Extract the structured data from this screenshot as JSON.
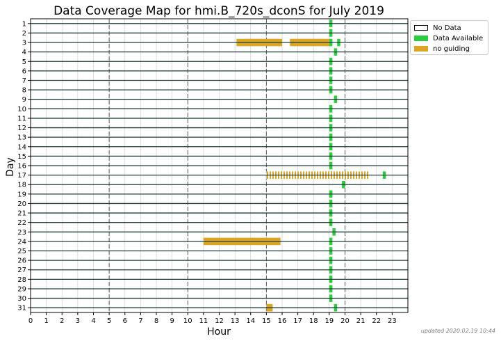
{
  "chart_data": {
    "type": "coverage-map",
    "title": "Data Coverage Map for hmi.B_720s_dconS for July 2019",
    "xlabel": "Hour",
    "ylabel": "Day",
    "xlim": [
      0,
      24
    ],
    "x_ticks": [
      0,
      1,
      2,
      3,
      4,
      5,
      6,
      7,
      8,
      9,
      10,
      11,
      12,
      13,
      14,
      15,
      16,
      17,
      18,
      19,
      20,
      21,
      22,
      23
    ],
    "days": [
      1,
      2,
      3,
      4,
      5,
      6,
      7,
      8,
      9,
      10,
      11,
      12,
      13,
      14,
      15,
      16,
      17,
      18,
      19,
      20,
      21,
      22,
      23,
      24,
      25,
      26,
      27,
      28,
      29,
      30,
      31
    ],
    "dashed_vlines": [
      5,
      10,
      15,
      20
    ],
    "legend": {
      "placement": "upper right, outside plot",
      "entries": [
        {
          "label": "No Data",
          "key": "none"
        },
        {
          "label": "Data Available",
          "key": "available"
        },
        {
          "label": "no guiding",
          "key": "noguide"
        }
      ]
    },
    "colors": {
      "available": "#2ecc40",
      "noguide": "#daa520",
      "none": "#ffffff",
      "row_line": "#1f3d3d",
      "grid": "#c8c8c8",
      "dashed": "#555555"
    },
    "series": [
      {
        "key": "available",
        "segments": [
          [
            1,
            19.0,
            19.2
          ],
          [
            2,
            19.0,
            19.2
          ],
          [
            3,
            19.0,
            19.2
          ],
          [
            3,
            19.5,
            19.7
          ],
          [
            4,
            19.3,
            19.5
          ],
          [
            5,
            19.0,
            19.2
          ],
          [
            6,
            19.0,
            19.2
          ],
          [
            7,
            19.0,
            19.2
          ],
          [
            8,
            19.0,
            19.2
          ],
          [
            9,
            19.3,
            19.5
          ],
          [
            10,
            19.0,
            19.2
          ],
          [
            11,
            19.0,
            19.2
          ],
          [
            12,
            19.0,
            19.2
          ],
          [
            13,
            19.0,
            19.2
          ],
          [
            14,
            19.0,
            19.2
          ],
          [
            15,
            19.0,
            19.2
          ],
          [
            16,
            19.0,
            19.2
          ],
          [
            17,
            19.0,
            19.2
          ],
          [
            17,
            22.4,
            22.6
          ],
          [
            18,
            19.8,
            20.0
          ],
          [
            19,
            19.0,
            19.2
          ],
          [
            20,
            19.0,
            19.2
          ],
          [
            21,
            19.0,
            19.2
          ],
          [
            22,
            19.0,
            19.2
          ],
          [
            23,
            19.2,
            19.4
          ],
          [
            24,
            19.0,
            19.2
          ],
          [
            25,
            19.0,
            19.2
          ],
          [
            26,
            19.0,
            19.2
          ],
          [
            27,
            19.0,
            19.2
          ],
          [
            28,
            19.0,
            19.2
          ],
          [
            29,
            19.0,
            19.2
          ],
          [
            30,
            19.0,
            19.2
          ],
          [
            31,
            19.3,
            19.5
          ]
        ]
      },
      {
        "key": "noguide",
        "segments": [
          [
            3,
            13.1,
            16.0
          ],
          [
            3,
            16.5,
            19.0
          ],
          [
            24,
            11.0,
            15.9
          ],
          [
            31,
            15.0,
            15.4
          ]
        ]
      },
      {
        "key": "noguide_hatched",
        "segments": [
          [
            17,
            15.0,
            21.5
          ]
        ]
      }
    ]
  },
  "footer": {
    "updated": "updated 2020.02.19 10:44"
  }
}
